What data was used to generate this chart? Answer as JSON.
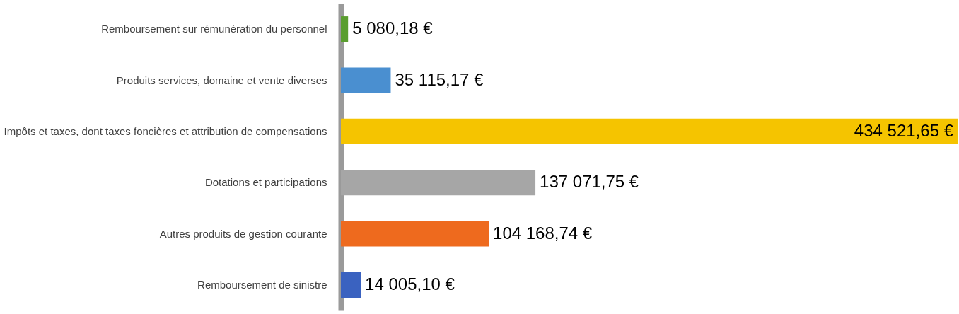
{
  "chart_data": {
    "type": "bar",
    "orientation": "horizontal",
    "categories": [
      "Remboursement sur rémunération du personnel",
      "Produits services, domaine et vente diverses",
      "Impôts et taxes, dont taxes foncières et attribution de compensations",
      "Dotations et participations",
      "Autres produits de gestion courante",
      "Remboursement de sinistre"
    ],
    "values": [
      5080.18,
      35115.17,
      434521.65,
      137071.75,
      104168.74,
      14005.1
    ],
    "value_labels": [
      "5 080,18 €",
      "35 115,17 €",
      "434 521,65 €",
      "137 071,75 €",
      "104 168,74 €",
      "14 005,10 €"
    ],
    "colors": [
      "#5a9e2f",
      "#4a8fd0",
      "#f5c400",
      "#a6a6a6",
      "#ee6a1e",
      "#3a62c0"
    ],
    "grid": false
  }
}
